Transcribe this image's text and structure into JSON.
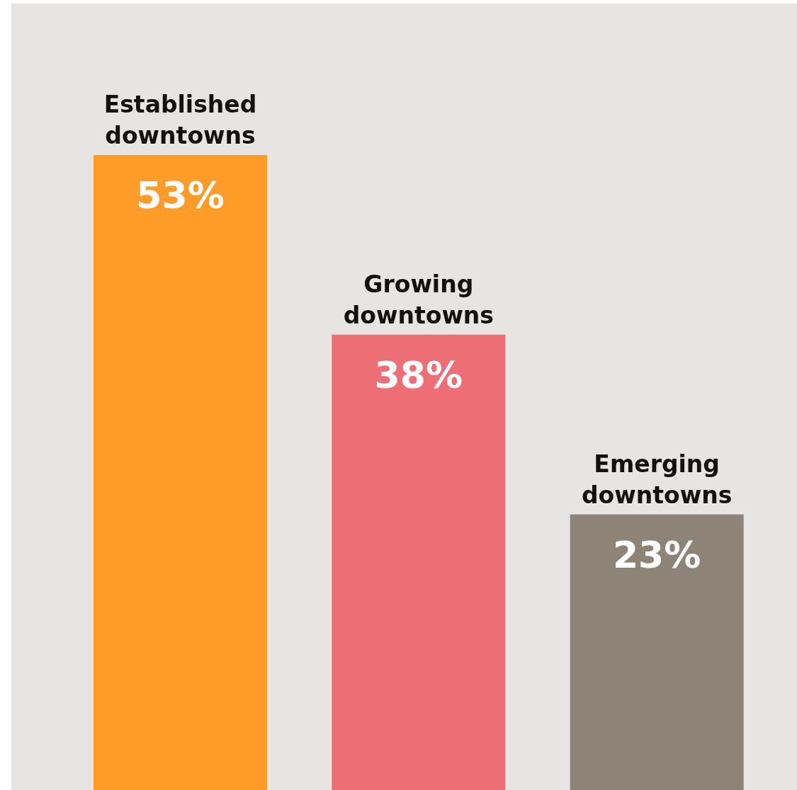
{
  "chart_data": {
    "type": "bar",
    "categories": [
      "Established downtowns",
      "Growing downtowns",
      "Emerging downtowns"
    ],
    "values": [
      53,
      38,
      23
    ],
    "colors": [
      "#ff9c28",
      "#ed6e75",
      "#8d8477"
    ],
    "value_labels": [
      "53%",
      "38%",
      "23%"
    ]
  }
}
